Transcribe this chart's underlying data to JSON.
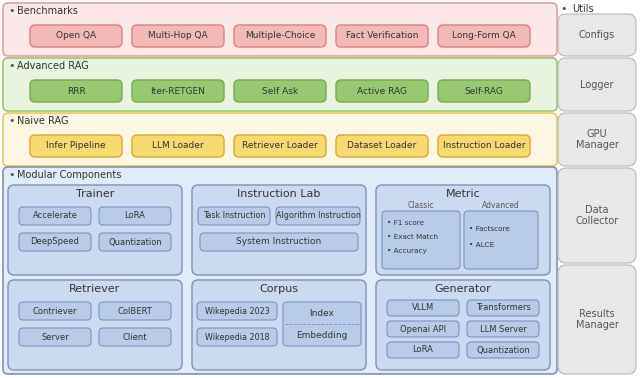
{
  "bg_color": "#ffffff",
  "benchmarks_bg": "#fce8e8",
  "benchmarks_border": "#e8a0a0",
  "benchmarks_box_fill": "#f4b8b8",
  "benchmarks_box_border": "#d88080",
  "advanced_bg": "#e8f4e0",
  "advanced_border": "#98c870",
  "advanced_box_fill": "#98c870",
  "advanced_box_border": "#78a850",
  "naive_bg": "#fdf6e0",
  "naive_border": "#e8c860",
  "naive_box_fill": "#f8d870",
  "naive_box_border": "#d8a830",
  "modular_bg": "#e0ecf8",
  "modular_border": "#8090b8",
  "modular_inner_fill": "#ccdaf0",
  "modular_inner_border": "#8090b8",
  "modular_item_fill": "#b8cce8",
  "modular_item_border": "#8090c0",
  "utils_box_fill": "#e8e8e8",
  "utils_box_border": "#b8b8b8",
  "benchmarks_items": [
    "Open QA",
    "Multi-Hop QA",
    "Multiple-Choice",
    "Fact Verification",
    "Long-Form QA"
  ],
  "advanced_items": [
    "RRR",
    "Iter-RETGEN",
    "Self Ask",
    "Active RAG",
    "Self-RAG"
  ],
  "naive_items": [
    "Infer Pipeline",
    "LLM Loader",
    "Retriever Loader",
    "Dataset Loader",
    "Instruction Loader"
  ],
  "utils_items": [
    "Configs",
    "Logger",
    "GPU\nManager",
    "Data\nCollector",
    "Results\nManager"
  ],
  "trainer_items": [
    [
      "Accelerate",
      "LoRA"
    ],
    [
      "DeepSpeed",
      "Quantization"
    ]
  ],
  "metric_classic": [
    "F1 score",
    "Exact Match",
    "Accuracy"
  ],
  "metric_advanced": [
    "Factscore",
    "ALCE"
  ],
  "retriever_items": [
    [
      "Contriever",
      "ColBERT"
    ],
    [
      "Server",
      "Client"
    ]
  ],
  "corpus_left": [
    "Wikepedia 2023",
    "Wikepedia 2018"
  ],
  "corpus_right": [
    "Index",
    "Embedding"
  ],
  "generator_items": [
    [
      "VLLM",
      "Transformers"
    ],
    [
      "Openai API",
      "LLM Server"
    ],
    [
      "LoRA",
      "Quantization"
    ]
  ]
}
